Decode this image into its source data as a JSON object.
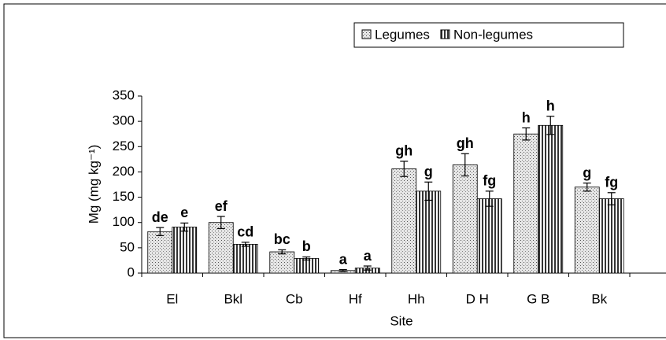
{
  "chart_data": {
    "type": "bar",
    "xlabel": "Site",
    "ylabel": "Mg (mg kg⁻¹)",
    "categories": [
      "El",
      "Bkl",
      "Cb",
      "Hf",
      "Hh",
      "D H",
      "G B",
      "Bk"
    ],
    "series": [
      {
        "name": "Legumes",
        "color": "#d9d9d9",
        "pattern": "dots",
        "values": [
          82,
          100,
          42,
          5,
          206,
          214,
          275,
          170
        ],
        "errors": [
          8,
          12,
          4,
          2,
          15,
          22,
          12,
          8
        ],
        "letters": [
          "de",
          "ef",
          "bc",
          "a",
          "gh",
          "gh",
          "h",
          "g"
        ]
      },
      {
        "name": "Non-legumes",
        "color": "#ffffff",
        "pattern": "stripes",
        "values": [
          91,
          57,
          29,
          10,
          162,
          147,
          292,
          147
        ],
        "errors": [
          8,
          4,
          3,
          4,
          18,
          15,
          18,
          12
        ],
        "letters": [
          "e",
          "cd",
          "b",
          "a",
          "g",
          "fg",
          "h",
          "fg"
        ]
      }
    ],
    "ylim": [
      0,
      350
    ],
    "yticks": [
      0,
      50,
      100,
      150,
      200,
      250,
      300,
      350
    ],
    "legend": "top-right"
  }
}
